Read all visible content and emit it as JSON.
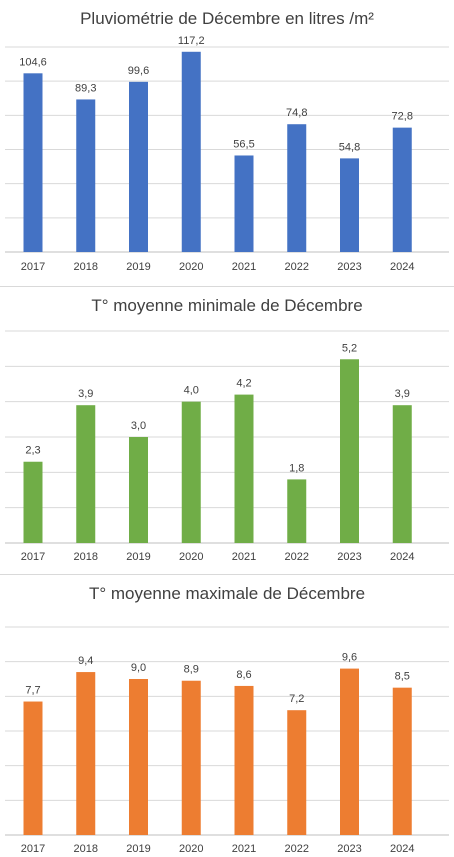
{
  "chart_data": [
    {
      "type": "bar",
      "title": "Pluviométrie de Décembre en litres /m²",
      "xlabel": "",
      "ylabel": "",
      "categories": [
        "2017",
        "2018",
        "2019",
        "2020",
        "2021",
        "2022",
        "2023",
        "2024"
      ],
      "values": [
        104.6,
        89.3,
        99.6,
        117.2,
        56.5,
        74.8,
        54.8,
        72.8
      ],
      "value_labels": [
        "104,6",
        "89,3",
        "99,6",
        "117,2",
        "56,5",
        "74,8",
        "54,8",
        "72,8"
      ],
      "ylim": [
        0,
        120
      ],
      "grid": true,
      "color": "#4472C4"
    },
    {
      "type": "bar",
      "title": "T° moyenne minimale de Décembre",
      "xlabel": "",
      "ylabel": "",
      "categories": [
        "2017",
        "2018",
        "2019",
        "2020",
        "2021",
        "2022",
        "2023",
        "2024"
      ],
      "values": [
        2.3,
        3.9,
        3.0,
        4.0,
        4.2,
        1.8,
        5.2,
        3.9
      ],
      "value_labels": [
        "2,3",
        "3,9",
        "3,0",
        "4,0",
        "4,2",
        "1,8",
        "5,2",
        "3,9"
      ],
      "ylim": [
        0,
        6
      ],
      "grid": true,
      "color": "#70AD47"
    },
    {
      "type": "bar",
      "title": "T° moyenne maximale de Décembre",
      "xlabel": "",
      "ylabel": "",
      "categories": [
        "2017",
        "2018",
        "2019",
        "2020",
        "2021",
        "2022",
        "2023",
        "2024"
      ],
      "values": [
        7.7,
        9.4,
        9.0,
        8.9,
        8.6,
        7.2,
        9.6,
        8.5
      ],
      "value_labels": [
        "7,7",
        "9,4",
        "9,0",
        "8,9",
        "8,6",
        "7,2",
        "9,6",
        "8,5"
      ],
      "ylim": [
        0,
        12
      ],
      "grid": true,
      "color": "#ED7D31"
    }
  ]
}
